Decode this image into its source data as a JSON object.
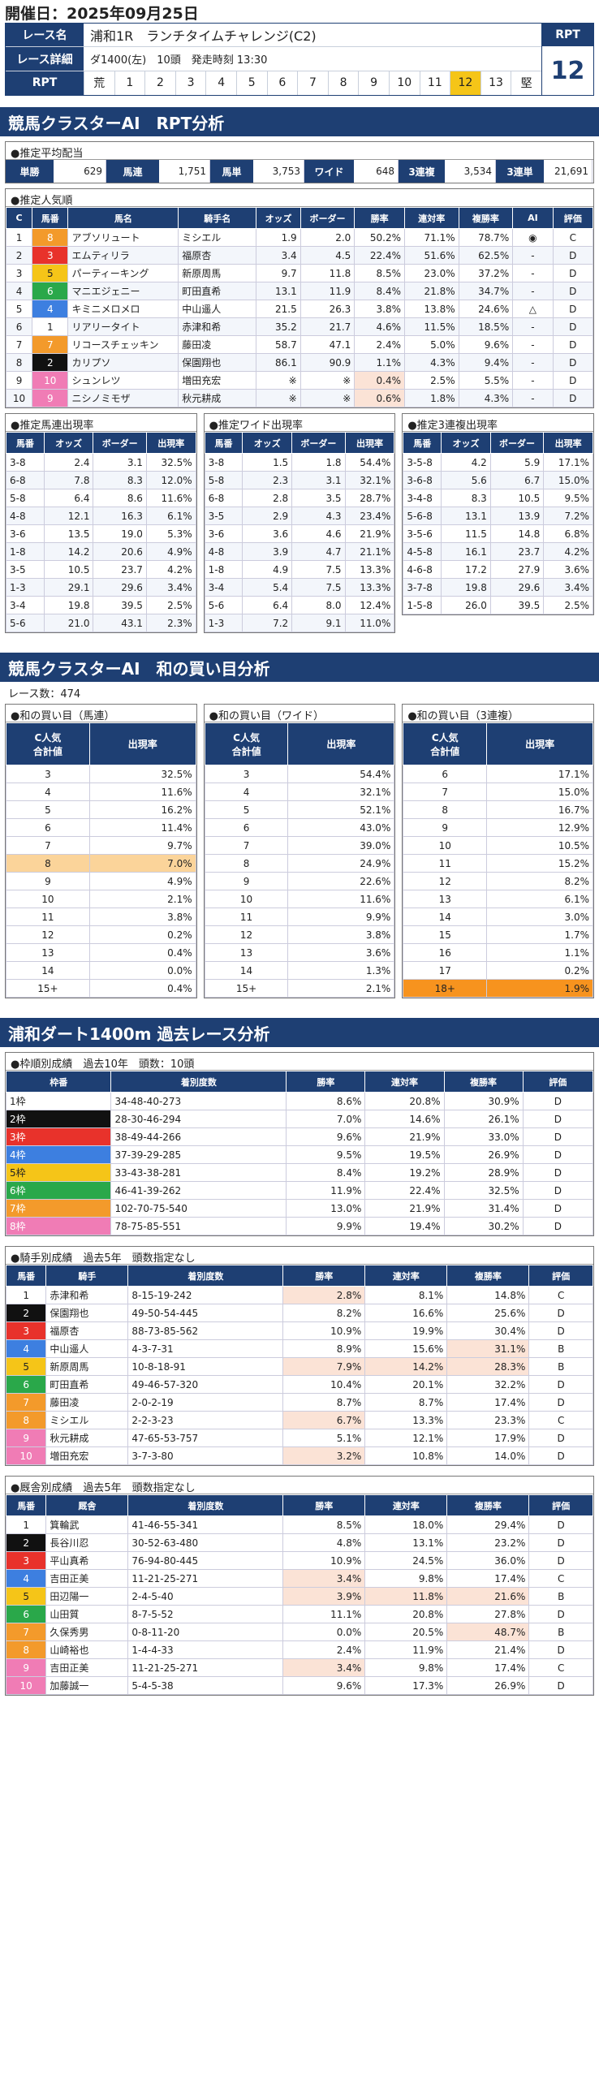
{
  "date": "開催日：2025年09月25日",
  "race": {
    "name_label": "レース名",
    "name": "浦和1R　ランチタイムチャレンジ(C2)",
    "detail_label": "レース詳細",
    "detail": "ダ1400(左)　10頭　発走時刻 13:30",
    "rpt_label": "RPT",
    "rpt_cells": [
      "荒",
      "1",
      "2",
      "3",
      "4",
      "5",
      "6",
      "7",
      "8",
      "9",
      "10",
      "11",
      "12",
      "13",
      "堅"
    ],
    "rpt_selected": "12",
    "rpt_header": "RPT",
    "rpt_value": "12"
  },
  "sec1": "競馬クラスターAI　RPT分析",
  "payout": {
    "title": "●推定平均配当",
    "items": [
      {
        "label": "単勝",
        "value": "629"
      },
      {
        "label": "馬連",
        "value": "1,751"
      },
      {
        "label": "馬単",
        "value": "3,753"
      },
      {
        "label": "ワイド",
        "value": "648"
      },
      {
        "label": "3連複",
        "value": "3,534"
      },
      {
        "label": "3連単",
        "value": "21,691"
      }
    ]
  },
  "pop": {
    "title": "●推定人気順",
    "headers": [
      "C",
      "馬番",
      "馬名",
      "騎手名",
      "オッズ",
      "ボーダー",
      "勝率",
      "連対率",
      "複勝率",
      "AI",
      "評価"
    ],
    "rows": [
      [
        "1",
        "8",
        "アブソリュート",
        "ミシエル",
        "1.9",
        "2.0",
        "50.2%",
        "71.1%",
        "78.7%",
        "◉",
        "C"
      ],
      [
        "2",
        "3",
        "エムティリラ",
        "福原杏",
        "3.4",
        "4.5",
        "22.4%",
        "51.6%",
        "62.5%",
        "-",
        "D"
      ],
      [
        "3",
        "5",
        "パーティーキング",
        "新原周馬",
        "9.7",
        "11.8",
        "8.5%",
        "23.0%",
        "37.2%",
        "-",
        "D"
      ],
      [
        "4",
        "6",
        "マニエジェニー",
        "町田直希",
        "13.1",
        "11.9",
        "8.4%",
        "21.8%",
        "34.7%",
        "-",
        "D"
      ],
      [
        "5",
        "4",
        "キミニメロメロ",
        "中山遥人",
        "21.5",
        "26.3",
        "3.8%",
        "13.8%",
        "24.6%",
        "△",
        "D"
      ],
      [
        "6",
        "1",
        "リアリータイト",
        "赤津和希",
        "35.2",
        "21.7",
        "4.6%",
        "11.5%",
        "18.5%",
        "-",
        "D"
      ],
      [
        "7",
        "7",
        "リコースチェッキン",
        "藤田凌",
        "58.7",
        "47.1",
        "2.4%",
        "5.0%",
        "9.6%",
        "-",
        "D"
      ],
      [
        "8",
        "2",
        "カリプソ",
        "保園翔也",
        "86.1",
        "90.9",
        "1.1%",
        "4.3%",
        "9.4%",
        "-",
        "D"
      ],
      [
        "9",
        "10",
        "シュンレツ",
        "増田充宏",
        "※",
        "※",
        "0.4%",
        "2.5%",
        "5.5%",
        "-",
        "D"
      ],
      [
        "10",
        "9",
        "ニシノミモザ",
        "秋元耕成",
        "※",
        "※",
        "0.6%",
        "1.8%",
        "4.3%",
        "-",
        "D"
      ]
    ]
  },
  "umaren": {
    "title": "●推定馬連出現率",
    "headers": [
      "馬番",
      "オッズ",
      "ボーダー",
      "出現率"
    ],
    "rows": [
      [
        "3-8",
        "2.4",
        "3.1",
        "32.5%"
      ],
      [
        "6-8",
        "7.8",
        "8.3",
        "12.0%"
      ],
      [
        "5-8",
        "6.4",
        "8.6",
        "11.6%"
      ],
      [
        "4-8",
        "12.1",
        "16.3",
        "6.1%"
      ],
      [
        "3-6",
        "13.5",
        "19.0",
        "5.3%"
      ],
      [
        "1-8",
        "14.2",
        "20.6",
        "4.9%"
      ],
      [
        "3-5",
        "10.5",
        "23.7",
        "4.2%"
      ],
      [
        "1-3",
        "29.1",
        "29.6",
        "3.4%"
      ],
      [
        "3-4",
        "19.8",
        "39.5",
        "2.5%"
      ],
      [
        "5-6",
        "21.0",
        "43.1",
        "2.3%"
      ]
    ]
  },
  "wide": {
    "title": "●推定ワイド出現率",
    "headers": [
      "馬番",
      "オッズ",
      "ボーダー",
      "出現率"
    ],
    "rows": [
      [
        "3-8",
        "1.5",
        "1.8",
        "54.4%"
      ],
      [
        "5-8",
        "2.3",
        "3.1",
        "32.1%"
      ],
      [
        "6-8",
        "2.8",
        "3.5",
        "28.7%"
      ],
      [
        "3-5",
        "2.9",
        "4.3",
        "23.4%"
      ],
      [
        "3-6",
        "3.6",
        "4.6",
        "21.9%"
      ],
      [
        "4-8",
        "3.9",
        "4.7",
        "21.1%"
      ],
      [
        "1-8",
        "4.9",
        "7.5",
        "13.3%"
      ],
      [
        "3-4",
        "5.4",
        "7.5",
        "13.3%"
      ],
      [
        "5-6",
        "6.4",
        "8.0",
        "12.4%"
      ],
      [
        "1-3",
        "7.2",
        "9.1",
        "11.0%"
      ]
    ]
  },
  "sanrenpuku": {
    "title": "●推定3連複出現率",
    "headers": [
      "馬番",
      "オッズ",
      "ボーダー",
      "出現率"
    ],
    "rows": [
      [
        "3-5-8",
        "4.2",
        "5.9",
        "17.1%"
      ],
      [
        "3-6-8",
        "5.6",
        "6.7",
        "15.0%"
      ],
      [
        "3-4-8",
        "8.3",
        "10.5",
        "9.5%"
      ],
      [
        "5-6-8",
        "13.1",
        "13.9",
        "7.2%"
      ],
      [
        "3-5-6",
        "11.5",
        "14.8",
        "6.8%"
      ],
      [
        "4-5-8",
        "16.1",
        "23.7",
        "4.2%"
      ],
      [
        "4-6-8",
        "17.2",
        "27.9",
        "3.6%"
      ],
      [
        "3-7-8",
        "19.8",
        "29.6",
        "3.4%"
      ],
      [
        "1-5-8",
        "26.0",
        "39.5",
        "2.5%"
      ]
    ]
  },
  "sec2": "競馬クラスターAI　和の買い目分析",
  "race_count": "レース数：474",
  "wa_umaren": {
    "title": "●和の買い目（馬連）",
    "headers": [
      "C人気\n合計値",
      "出現率"
    ],
    "rows": [
      [
        "3",
        "32.5%"
      ],
      [
        "4",
        "11.6%"
      ],
      [
        "5",
        "16.2%"
      ],
      [
        "6",
        "11.4%"
      ],
      [
        "7",
        "9.7%"
      ],
      [
        "8",
        "7.0%"
      ],
      [
        "9",
        "4.9%"
      ],
      [
        "10",
        "2.1%"
      ],
      [
        "11",
        "3.8%"
      ],
      [
        "12",
        "0.2%"
      ],
      [
        "13",
        "0.4%"
      ],
      [
        "14",
        "0.0%"
      ],
      [
        "15+",
        "0.4%"
      ]
    ]
  },
  "wa_wide": {
    "title": "●和の買い目（ワイド）",
    "headers": [
      "C人気\n合計値",
      "出現率"
    ],
    "rows": [
      [
        "3",
        "54.4%"
      ],
      [
        "4",
        "32.1%"
      ],
      [
        "5",
        "52.1%"
      ],
      [
        "6",
        "43.0%"
      ],
      [
        "7",
        "39.0%"
      ],
      [
        "8",
        "24.9%"
      ],
      [
        "9",
        "22.6%"
      ],
      [
        "10",
        "11.6%"
      ],
      [
        "11",
        "9.9%"
      ],
      [
        "12",
        "3.8%"
      ],
      [
        "13",
        "3.6%"
      ],
      [
        "14",
        "1.3%"
      ],
      [
        "15+",
        "2.1%"
      ]
    ]
  },
  "wa_sanren": {
    "title": "●和の買い目（3連複）",
    "headers": [
      "C人気\n合計値",
      "出現率"
    ],
    "rows": [
      [
        "6",
        "17.1%"
      ],
      [
        "7",
        "15.0%"
      ],
      [
        "8",
        "16.7%"
      ],
      [
        "9",
        "12.9%"
      ],
      [
        "10",
        "10.5%"
      ],
      [
        "11",
        "15.2%"
      ],
      [
        "12",
        "8.2%"
      ],
      [
        "13",
        "6.1%"
      ],
      [
        "14",
        "3.0%"
      ],
      [
        "15",
        "1.7%"
      ],
      [
        "16",
        "1.1%"
      ],
      [
        "17",
        "0.2%"
      ],
      [
        "18+",
        "1.9%"
      ]
    ]
  },
  "sec3": "浦和ダート1400m 過去レース分析",
  "waku": {
    "title": "●枠順別成績　過去10年　頭数：10頭",
    "headers": [
      "枠番",
      "着別度数",
      "勝率",
      "連対率",
      "複勝率",
      "評価"
    ],
    "rows": [
      [
        "1枠",
        "34-48-40-273",
        "8.6%",
        "20.8%",
        "30.9%",
        "D"
      ],
      [
        "2枠",
        "28-30-46-294",
        "7.0%",
        "14.6%",
        "26.1%",
        "D"
      ],
      [
        "3枠",
        "38-49-44-266",
        "9.6%",
        "21.9%",
        "33.0%",
        "D"
      ],
      [
        "4枠",
        "37-39-29-285",
        "9.5%",
        "19.5%",
        "26.9%",
        "D"
      ],
      [
        "5枠",
        "33-43-38-281",
        "8.4%",
        "19.2%",
        "28.9%",
        "D"
      ],
      [
        "6枠",
        "46-41-39-262",
        "11.9%",
        "22.4%",
        "32.5%",
        "D"
      ],
      [
        "7枠",
        "102-70-75-540",
        "13.0%",
        "21.9%",
        "31.4%",
        "D"
      ],
      [
        "8枠",
        "78-75-85-551",
        "9.9%",
        "19.4%",
        "30.2%",
        "D"
      ]
    ]
  },
  "jockey": {
    "title": "●騎手別成績　過去5年　頭数指定なし",
    "headers": [
      "馬番",
      "騎手",
      "着別度数",
      "勝率",
      "連対率",
      "複勝率",
      "評価"
    ],
    "rows": [
      [
        "1",
        "赤津和希",
        "8-15-19-242",
        "2.8%",
        "8.1%",
        "14.8%",
        "C"
      ],
      [
        "2",
        "保園翔也",
        "49-50-54-445",
        "8.2%",
        "16.6%",
        "25.6%",
        "D"
      ],
      [
        "3",
        "福原杏",
        "88-73-85-562",
        "10.9%",
        "19.9%",
        "30.4%",
        "D"
      ],
      [
        "4",
        "中山遥人",
        "4-3-7-31",
        "8.9%",
        "15.6%",
        "31.1%",
        "B"
      ],
      [
        "5",
        "新原周馬",
        "10-8-18-91",
        "7.9%",
        "14.2%",
        "28.3%",
        "B"
      ],
      [
        "6",
        "町田直希",
        "49-46-57-320",
        "10.4%",
        "20.1%",
        "32.2%",
        "D"
      ],
      [
        "7",
        "藤田凌",
        "2-0-2-19",
        "8.7%",
        "8.7%",
        "17.4%",
        "D"
      ],
      [
        "8",
        "ミシエル",
        "2-2-3-23",
        "6.7%",
        "13.3%",
        "23.3%",
        "C"
      ],
      [
        "9",
        "秋元耕成",
        "47-65-53-757",
        "5.1%",
        "12.1%",
        "17.9%",
        "D"
      ],
      [
        "10",
        "増田充宏",
        "3-7-3-80",
        "3.2%",
        "10.8%",
        "14.0%",
        "D"
      ]
    ]
  },
  "trainer": {
    "title": "●厩舎別成績　過去5年　頭数指定なし",
    "headers": [
      "馬番",
      "厩舎",
      "着別度数",
      "勝率",
      "連対率",
      "複勝率",
      "評価"
    ],
    "rows": [
      [
        "1",
        "箕輪武",
        "41-46-55-341",
        "8.5%",
        "18.0%",
        "29.4%",
        "D"
      ],
      [
        "2",
        "長谷川忍",
        "30-52-63-480",
        "4.8%",
        "13.1%",
        "23.2%",
        "D"
      ],
      [
        "3",
        "平山真希",
        "76-94-80-445",
        "10.9%",
        "24.5%",
        "36.0%",
        "D"
      ],
      [
        "4",
        "吉田正美",
        "11-21-25-271",
        "3.4%",
        "9.8%",
        "17.4%",
        "C"
      ],
      [
        "5",
        "田辺陽一",
        "2-4-5-40",
        "3.9%",
        "11.8%",
        "21.6%",
        "B"
      ],
      [
        "6",
        "山田質",
        "8-7-5-52",
        "11.1%",
        "20.8%",
        "27.8%",
        "D"
      ],
      [
        "7",
        "久保秀男",
        "0-8-11-20",
        "0.0%",
        "20.5%",
        "48.7%",
        "B"
      ],
      [
        "8",
        "山崎裕也",
        "1-4-4-33",
        "2.4%",
        "11.9%",
        "21.4%",
        "D"
      ],
      [
        "9",
        "吉田正美",
        "11-21-25-271",
        "3.4%",
        "9.8%",
        "17.4%",
        "C"
      ],
      [
        "10",
        "加藤誠一",
        "5-4-5-38",
        "9.6%",
        "17.3%",
        "26.9%",
        "D"
      ]
    ]
  },
  "colors": {
    "navy": "#1e3f73",
    "waku": [
      "#ffffff",
      "#111111",
      "#e8322b",
      "#3d7fe0",
      "#f5c518",
      "#2aa84a",
      "#f39a2b",
      "#f07cb5"
    ]
  }
}
